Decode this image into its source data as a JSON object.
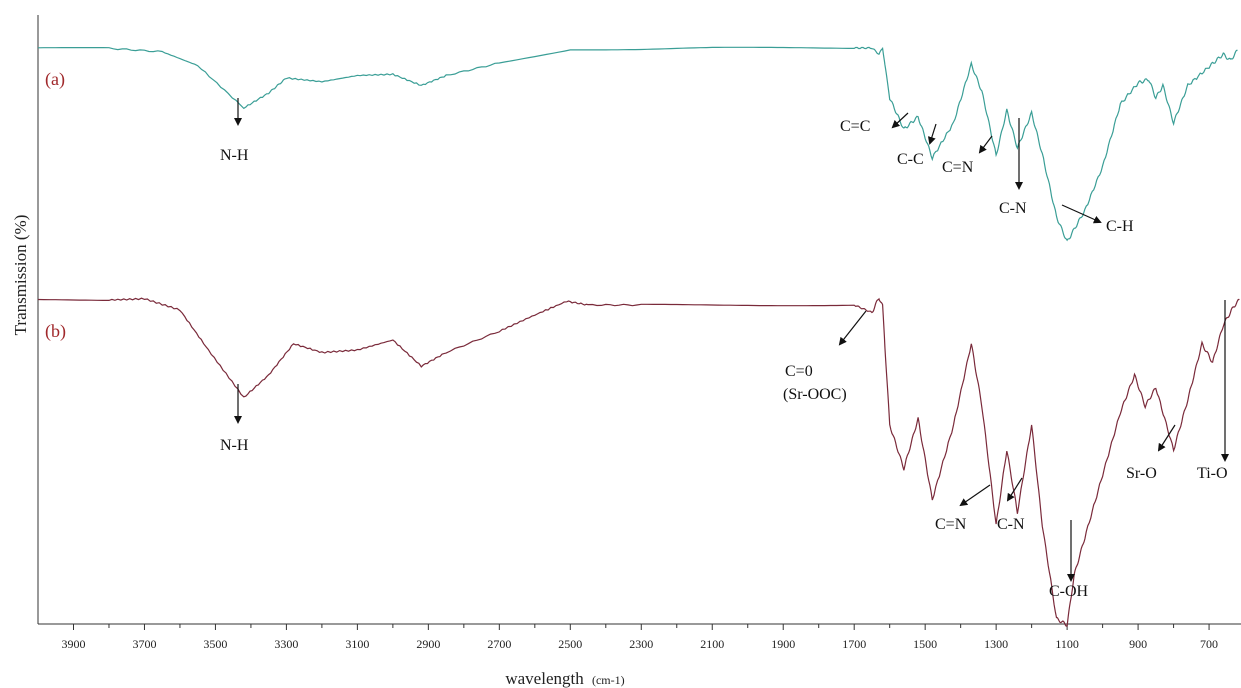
{
  "chart_data": {
    "type": "line",
    "xlabel": "wavelength",
    "xlabel_unit": "(cm-1)",
    "ylabel": "Transmission (%)",
    "xlim": [
      4000,
      610
    ],
    "x_reversed": true,
    "ticks": [
      "3900",
      "3700",
      "3500",
      "3300",
      "3100",
      "2900",
      "2700",
      "2500",
      "2300",
      "2100",
      "1900",
      "1700",
      "1500",
      "1300",
      "1100",
      "900",
      "700"
    ],
    "colors": {
      "a": "#3a9e96",
      "b": "#7a2a3a",
      "panel_label": "#a0282b"
    },
    "series": [
      {
        "name": "(a)",
        "points": [
          [
            4000,
            0
          ],
          [
            3800,
            -0.3
          ],
          [
            3650,
            -3
          ],
          [
            3550,
            -14
          ],
          [
            3420,
            -48
          ],
          [
            3350,
            -36
          ],
          [
            3300,
            -24
          ],
          [
            3200,
            -27
          ],
          [
            3100,
            -22
          ],
          [
            3000,
            -21
          ],
          [
            2920,
            -30
          ],
          [
            2850,
            -22
          ],
          [
            2700,
            -12
          ],
          [
            2500,
            -1
          ],
          [
            2300,
            -1
          ],
          [
            2100,
            0
          ],
          [
            1900,
            0
          ],
          [
            1700,
            0
          ],
          [
            1650,
            0
          ],
          [
            1630,
            -5
          ],
          [
            1620,
            0
          ],
          [
            1600,
            -40
          ],
          [
            1560,
            -65
          ],
          [
            1520,
            -55
          ],
          [
            1480,
            -88
          ],
          [
            1420,
            -60
          ],
          [
            1370,
            -13
          ],
          [
            1340,
            -35
          ],
          [
            1300,
            -86
          ],
          [
            1270,
            -50
          ],
          [
            1240,
            -80
          ],
          [
            1200,
            -52
          ],
          [
            1170,
            -85
          ],
          [
            1130,
            -135
          ],
          [
            1100,
            -155
          ],
          [
            1090,
            -150
          ],
          [
            1050,
            -130
          ],
          [
            1000,
            -95
          ],
          [
            950,
            -45
          ],
          [
            900,
            -28
          ],
          [
            870,
            -25
          ],
          [
            850,
            -40
          ],
          [
            830,
            -30
          ],
          [
            800,
            -60
          ],
          [
            760,
            -30
          ],
          [
            700,
            -15
          ],
          [
            660,
            -5
          ],
          [
            640,
            -10
          ],
          [
            620,
            -2
          ]
        ]
      },
      {
        "name": "(b)",
        "points": [
          [
            4000,
            0
          ],
          [
            3800,
            0
          ],
          [
            3700,
            1
          ],
          [
            3600,
            -8
          ],
          [
            3520,
            -40
          ],
          [
            3420,
            -78
          ],
          [
            3350,
            -60
          ],
          [
            3280,
            -35
          ],
          [
            3200,
            -42
          ],
          [
            3100,
            -40
          ],
          [
            3000,
            -32
          ],
          [
            2920,
            -53
          ],
          [
            2850,
            -42
          ],
          [
            2700,
            -25
          ],
          [
            2600,
            -12
          ],
          [
            2510,
            -1
          ],
          [
            2450,
            -4
          ],
          [
            2300,
            -4
          ],
          [
            2100,
            -4
          ],
          [
            1900,
            -4
          ],
          [
            1700,
            -4
          ],
          [
            1650,
            -10
          ],
          [
            1630,
            2
          ],
          [
            1620,
            -5
          ],
          [
            1600,
            -100
          ],
          [
            1560,
            -135
          ],
          [
            1520,
            -95
          ],
          [
            1480,
            -160
          ],
          [
            1420,
            -100
          ],
          [
            1370,
            -35
          ],
          [
            1340,
            -85
          ],
          [
            1300,
            -180
          ],
          [
            1270,
            -120
          ],
          [
            1240,
            -170
          ],
          [
            1200,
            -100
          ],
          [
            1170,
            -180
          ],
          [
            1130,
            -255
          ],
          [
            1100,
            -260
          ],
          [
            1080,
            -220
          ],
          [
            1050,
            -190
          ],
          [
            1000,
            -140
          ],
          [
            950,
            -90
          ],
          [
            910,
            -60
          ],
          [
            880,
            -85
          ],
          [
            850,
            -70
          ],
          [
            800,
            -120
          ],
          [
            760,
            -80
          ],
          [
            720,
            -35
          ],
          [
            690,
            -50
          ],
          [
            660,
            -20
          ],
          [
            630,
            -5
          ],
          [
            615,
            0
          ]
        ]
      }
    ],
    "labels": {
      "panel_a": "(a)",
      "panel_b": "(b)",
      "a_nh": "N-H",
      "a_cc_double": "C=C",
      "a_cc": "C-C",
      "a_cn_double": "C=N",
      "a_cn": "C-N",
      "a_ch": "C-H",
      "b_nh": "N-H",
      "b_co": "C=0",
      "b_co_sub": "(Sr-OOC)",
      "b_cn_double": "C=N",
      "b_cn": "C-N",
      "b_coh": "C-OH",
      "b_sro": "Sr-O",
      "b_tio": "Ti-O"
    }
  }
}
